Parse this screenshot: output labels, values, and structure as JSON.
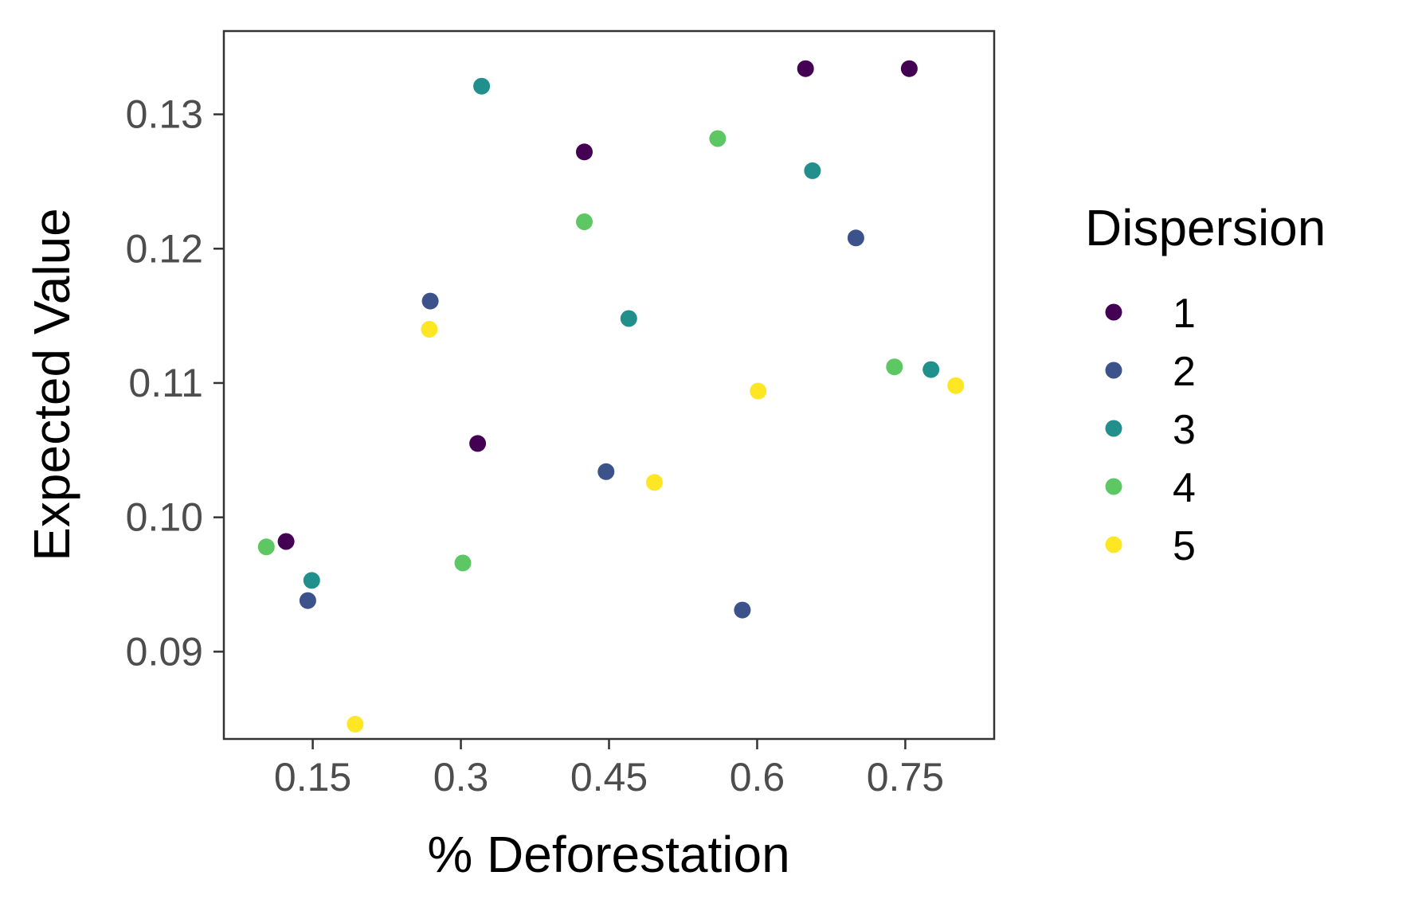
{
  "chart_data": {
    "type": "scatter",
    "title": "",
    "xlabel": "% Deforestation",
    "ylabel": "Expected Value",
    "xlim": [
      0.06,
      0.84
    ],
    "ylim": [
      0.0835,
      0.1362
    ],
    "x_ticks": [
      0.15,
      0.3,
      0.45,
      0.6,
      0.75
    ],
    "x_tick_labels": [
      "0.15",
      "0.3",
      "0.45",
      "0.6",
      "0.75"
    ],
    "y_ticks": [
      0.09,
      0.1,
      0.11,
      0.12,
      0.13
    ],
    "y_tick_labels": [
      "0.09",
      "0.10",
      "0.11",
      "0.12",
      "0.13"
    ],
    "grid": false,
    "legend": {
      "title": "Dispersion",
      "placement": "right"
    },
    "series": [
      {
        "name": "1",
        "color": "#440154",
        "points": [
          {
            "x": 0.123,
            "y": 0.0982
          },
          {
            "x": 0.317,
            "y": 0.1055
          },
          {
            "x": 0.425,
            "y": 0.1272
          },
          {
            "x": 0.649,
            "y": 0.1334
          },
          {
            "x": 0.754,
            "y": 0.1334
          }
        ]
      },
      {
        "name": "2",
        "color": "#3B528B",
        "points": [
          {
            "x": 0.145,
            "y": 0.0938
          },
          {
            "x": 0.269,
            "y": 0.1161
          },
          {
            "x": 0.447,
            "y": 0.1034
          },
          {
            "x": 0.585,
            "y": 0.0931
          },
          {
            "x": 0.7,
            "y": 0.1208
          }
        ]
      },
      {
        "name": "3",
        "color": "#21908C",
        "points": [
          {
            "x": 0.149,
            "y": 0.0953
          },
          {
            "x": 0.321,
            "y": 0.1321
          },
          {
            "x": 0.47,
            "y": 0.1148
          },
          {
            "x": 0.656,
            "y": 0.1258
          },
          {
            "x": 0.776,
            "y": 0.111
          }
        ]
      },
      {
        "name": "4",
        "color": "#5DC863",
        "points": [
          {
            "x": 0.103,
            "y": 0.0978
          },
          {
            "x": 0.302,
            "y": 0.0966
          },
          {
            "x": 0.425,
            "y": 0.122
          },
          {
            "x": 0.56,
            "y": 0.1282
          },
          {
            "x": 0.739,
            "y": 0.1112
          }
        ]
      },
      {
        "name": "5",
        "color": "#FDE725",
        "points": [
          {
            "x": 0.193,
            "y": 0.0846
          },
          {
            "x": 0.268,
            "y": 0.114
          },
          {
            "x": 0.496,
            "y": 0.1026
          },
          {
            "x": 0.601,
            "y": 0.1094
          },
          {
            "x": 0.801,
            "y": 0.1098
          }
        ]
      }
    ]
  }
}
